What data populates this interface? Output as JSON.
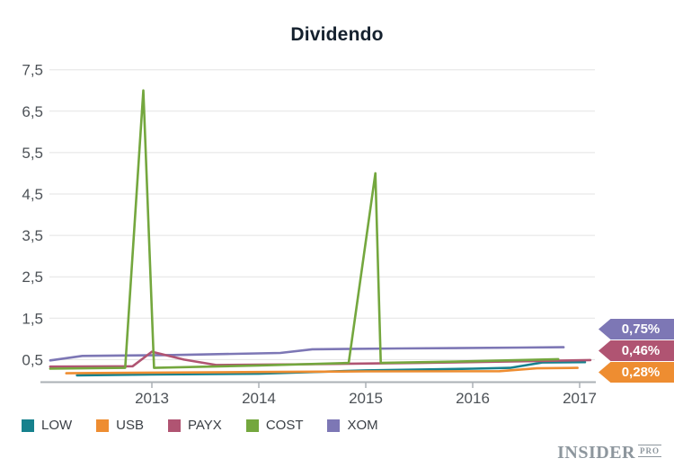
{
  "title": "Dividendo",
  "chart_data": {
    "type": "line",
    "title": "Dividendo",
    "grid": true,
    "legend_position": "bottom",
    "x_axis": {
      "ticks": [
        2013,
        2014,
        2015,
        2016,
        2017
      ],
      "tick_labels": [
        "2013",
        "2014",
        "2015",
        "2016",
        "2017"
      ],
      "min": 2012.0,
      "max": 2017.15
    },
    "y_axis": {
      "tick_values": [
        0.5,
        1.5,
        2.5,
        3.5,
        4.5,
        5.5,
        6.5,
        7.5
      ],
      "tick_labels": [
        "0,5",
        "1,5",
        "2,5",
        "3,5",
        "4,5",
        "5,5",
        "6,5",
        "7,5"
      ],
      "min": 0,
      "max": 7.9
    },
    "series": [
      {
        "name": "LOW",
        "color": "#16818d",
        "points": [
          [
            2012.3,
            0.12
          ],
          [
            2013.0,
            0.14
          ],
          [
            2014.0,
            0.16
          ],
          [
            2015.0,
            0.24
          ],
          [
            2016.0,
            0.28
          ],
          [
            2016.35,
            0.3
          ],
          [
            2016.65,
            0.43
          ],
          [
            2017.05,
            0.44
          ]
        ]
      },
      {
        "name": "USB",
        "color": "#ee8d31",
        "points": [
          [
            2012.2,
            0.17
          ],
          [
            2013.0,
            0.185
          ],
          [
            2014.0,
            0.2
          ],
          [
            2015.0,
            0.215
          ],
          [
            2016.25,
            0.22
          ],
          [
            2016.6,
            0.29
          ],
          [
            2016.98,
            0.3
          ]
        ]
      },
      {
        "name": "PAYX",
        "color": "#b05472",
        "points": [
          [
            2012.05,
            0.33
          ],
          [
            2012.82,
            0.34
          ],
          [
            2013.0,
            0.69
          ],
          [
            2013.3,
            0.5
          ],
          [
            2013.6,
            0.37
          ],
          [
            2014.5,
            0.39
          ],
          [
            2015.5,
            0.42
          ],
          [
            2016.5,
            0.46
          ],
          [
            2017.1,
            0.49
          ]
        ]
      },
      {
        "name": "COST",
        "color": "#74a73e",
        "points": [
          [
            2012.05,
            0.28
          ],
          [
            2012.75,
            0.3
          ],
          [
            2012.92,
            7.0
          ],
          [
            2013.02,
            0.3
          ],
          [
            2014.0,
            0.36
          ],
          [
            2014.84,
            0.42
          ],
          [
            2015.09,
            5.0
          ],
          [
            2015.14,
            0.42
          ],
          [
            2016.0,
            0.46
          ],
          [
            2016.8,
            0.51
          ]
        ]
      },
      {
        "name": "XOM",
        "color": "#7d77b5",
        "points": [
          [
            2012.05,
            0.48
          ],
          [
            2012.35,
            0.59
          ],
          [
            2013.2,
            0.61
          ],
          [
            2014.2,
            0.66
          ],
          [
            2014.5,
            0.75
          ],
          [
            2015.3,
            0.77
          ],
          [
            2016.45,
            0.79
          ],
          [
            2016.85,
            0.8
          ]
        ]
      }
    ],
    "end_labels": [
      {
        "text": "0,75%",
        "color": "#7d77b5"
      },
      {
        "text": "0,46%",
        "color": "#b05472"
      },
      {
        "text": "0,28%",
        "color": "#ee8d31"
      }
    ]
  },
  "branding": {
    "name": "INSIDER",
    "suffix": "PRO"
  }
}
